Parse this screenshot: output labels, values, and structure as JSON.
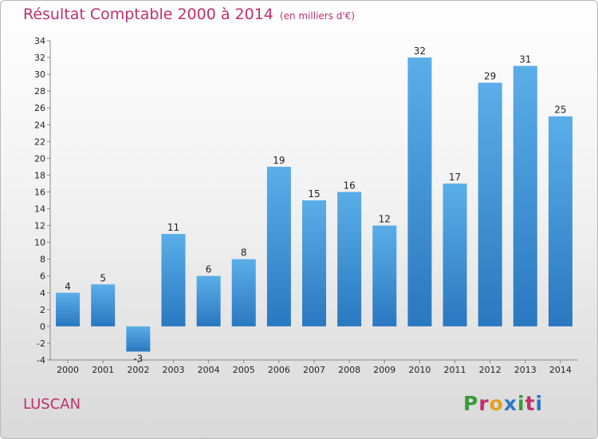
{
  "header": {
    "title": "Résultat Comptable 2000 à 2014",
    "subtitle": "(en milliers d'€)"
  },
  "footer": {
    "commune": "LUSCAN",
    "logo_text": "Proxiti"
  },
  "colors": {
    "title": "#c0306a",
    "bar_light": "#5aaee8",
    "bar_dark": "#2a78c0",
    "logo_letters": [
      "#3a9a3a",
      "#c0306a",
      "#e2a020",
      "#2a78c0",
      "#3a9a3a",
      "#c0306a",
      "#2a78c0"
    ]
  },
  "chart_data": {
    "type": "bar",
    "title": "Résultat Comptable 2000 à 2014",
    "categories": [
      "2000",
      "2001",
      "2002",
      "2003",
      "2004",
      "2005",
      "2006",
      "2007",
      "2008",
      "2009",
      "2010",
      "2011",
      "2012",
      "2013",
      "2014"
    ],
    "values": [
      4,
      5,
      -3,
      11,
      6,
      8,
      19,
      15,
      16,
      12,
      32,
      17,
      29,
      31,
      25
    ],
    "ylim": [
      -4,
      34
    ],
    "yticks": [
      -4,
      -2,
      0,
      2,
      4,
      6,
      8,
      10,
      12,
      14,
      16,
      18,
      20,
      22,
      24,
      26,
      28,
      30,
      32,
      34
    ],
    "grid": false,
    "legend": "none"
  }
}
